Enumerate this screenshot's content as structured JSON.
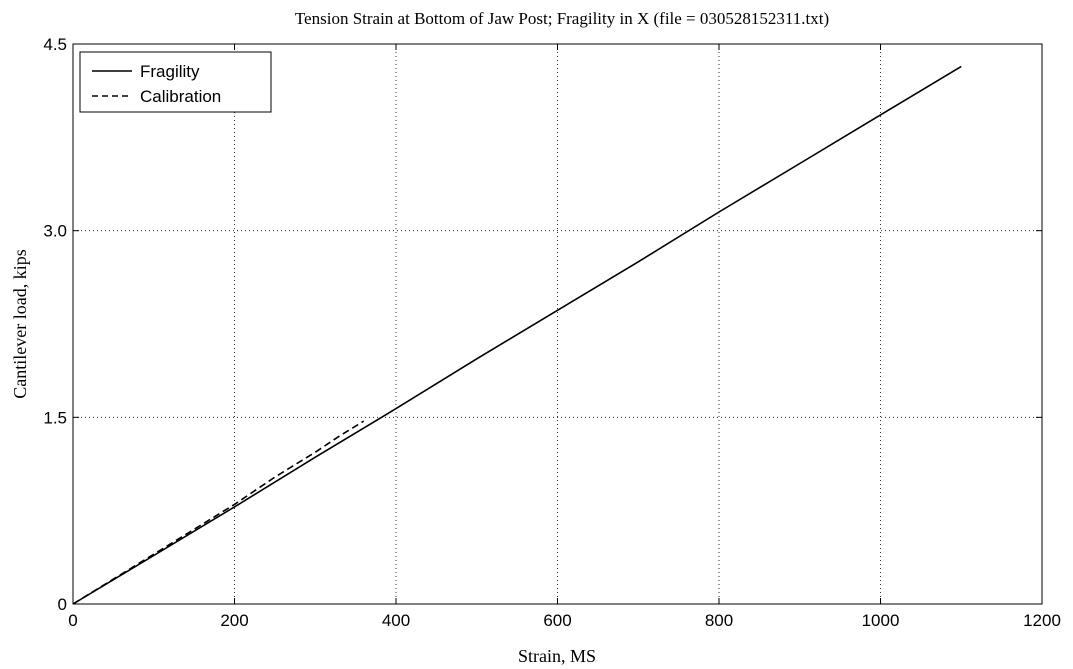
{
  "chart_data": {
    "type": "line",
    "title": "Tension Strain at Bottom of Jaw Post; Fragility in X (file = 030528152311.txt)",
    "xlabel": "Strain, MS",
    "ylabel": "Cantilever load, kips",
    "xlim": [
      0,
      1200
    ],
    "ylim": [
      0,
      4.5
    ],
    "xticks": [
      0,
      200,
      400,
      600,
      800,
      1000,
      1200
    ],
    "xtick_labels": [
      "0",
      "200",
      "400",
      "600",
      "800",
      "1000",
      "1200"
    ],
    "yticks": [
      0,
      1.5,
      3.0,
      4.5
    ],
    "ytick_labels": [
      "0",
      "1.5",
      "3.0",
      "4.5"
    ],
    "grid": true,
    "legend_position": "top-left",
    "series": [
      {
        "name": "Fragility",
        "style": "solid",
        "color": "#000000",
        "x": [
          0,
          100,
          200,
          300,
          400,
          500,
          600,
          700,
          800,
          900,
          1000,
          1100
        ],
        "y": [
          0,
          0.39,
          0.78,
          1.18,
          1.57,
          1.97,
          2.36,
          2.75,
          3.15,
          3.54,
          3.93,
          4.32
        ]
      },
      {
        "name": "Calibration",
        "style": "dashed",
        "color": "#000000",
        "x": [
          0,
          50,
          100,
          150,
          200,
          250,
          300,
          330,
          360
        ],
        "y": [
          0,
          0.2,
          0.4,
          0.6,
          0.8,
          1.02,
          1.22,
          1.35,
          1.47
        ]
      }
    ]
  }
}
